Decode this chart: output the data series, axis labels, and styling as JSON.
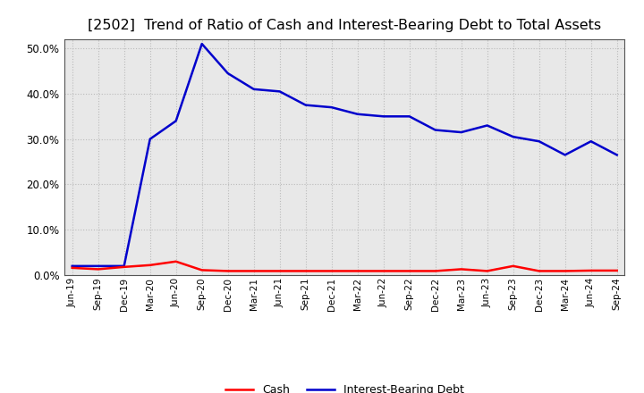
{
  "title": "[2502]  Trend of Ratio of Cash and Interest-Bearing Debt to Total Assets",
  "labels": [
    "Jun-19",
    "Sep-19",
    "Dec-19",
    "Mar-20",
    "Jun-20",
    "Sep-20",
    "Dec-20",
    "Mar-21",
    "Jun-21",
    "Sep-21",
    "Dec-21",
    "Mar-22",
    "Jun-22",
    "Sep-22",
    "Dec-22",
    "Mar-23",
    "Jun-23",
    "Sep-23",
    "Dec-23",
    "Mar-24",
    "Jun-24",
    "Sep-24"
  ],
  "cash": [
    0.016,
    0.013,
    0.018,
    0.022,
    0.03,
    0.011,
    0.009,
    0.009,
    0.009,
    0.009,
    0.009,
    0.009,
    0.009,
    0.009,
    0.009,
    0.013,
    0.009,
    0.02,
    0.009,
    0.009,
    0.01,
    0.01
  ],
  "debt": [
    0.02,
    0.02,
    0.02,
    0.3,
    0.34,
    0.51,
    0.445,
    0.41,
    0.405,
    0.375,
    0.37,
    0.355,
    0.35,
    0.35,
    0.32,
    0.315,
    0.33,
    0.305,
    0.295,
    0.265,
    0.295,
    0.265
  ],
  "cash_color": "#ff0000",
  "debt_color": "#0000cc",
  "ylim_min": 0.0,
  "ylim_max": 0.52,
  "yticks": [
    0.0,
    0.1,
    0.2,
    0.3,
    0.4,
    0.5
  ],
  "plot_bg_color": "#e8e8e8",
  "fig_bg_color": "#ffffff",
  "grid_color": "#bbbbbb",
  "title_fontsize": 11.5,
  "axis_label_fontsize": 7.5,
  "legend_cash": "Cash",
  "legend_debt": "Interest-Bearing Debt"
}
